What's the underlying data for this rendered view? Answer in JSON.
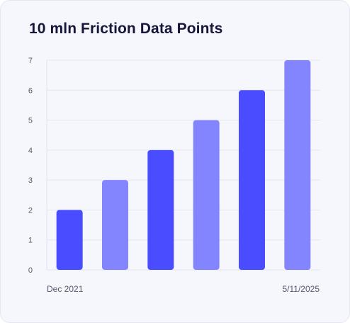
{
  "chart_data": {
    "type": "bar",
    "title": "10 mln Friction Data Points",
    "x_labels_shown": [
      "Dec 2021",
      "5/11/2025"
    ],
    "values": [
      2,
      3,
      4,
      5,
      6,
      7
    ],
    "ylim": [
      0,
      7
    ],
    "yticks": [
      "0",
      "1",
      "2",
      "3",
      "4",
      "5",
      "6",
      "7"
    ],
    "grid": true,
    "colors": [
      "#4a4cff",
      "#8385ff"
    ]
  }
}
